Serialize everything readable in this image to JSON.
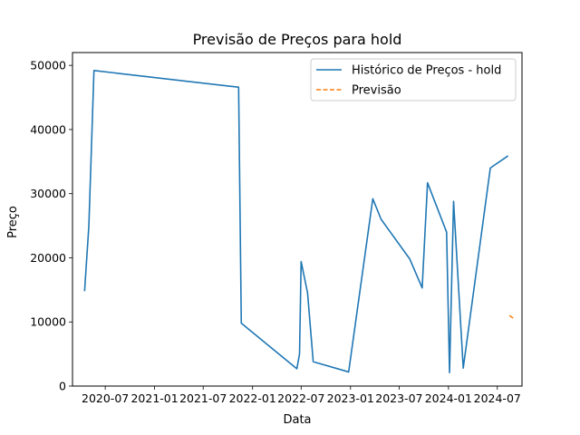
{
  "chart_data": {
    "type": "line",
    "title": "Previsão de Preços para hold",
    "xlabel": "Data",
    "ylabel": "Preço",
    "xlim": [
      "2020-03-01",
      "2024-10-01"
    ],
    "ylim": [
      0,
      52000
    ],
    "x_ticks": [
      "2020-07",
      "2021-01",
      "2021-07",
      "2022-01",
      "2022-07",
      "2023-01",
      "2023-07",
      "2024-01",
      "2024-07"
    ],
    "y_ticks": [
      0,
      10000,
      20000,
      30000,
      40000,
      50000
    ],
    "y_tick_labels": [
      "0",
      "10000",
      "20000",
      "30000",
      "40000",
      "50000"
    ],
    "grid": false,
    "legend_position": "top-right",
    "series": [
      {
        "name": "Histórico de Preços - hold",
        "color": "#1f77b4",
        "style": "solid",
        "x": [
          "2020-04-15",
          "2020-05-01",
          "2020-05-20",
          "2021-11-10",
          "2021-11-20",
          "2022-06-15",
          "2022-06-25",
          "2022-07-01",
          "2022-07-25",
          "2022-08-15",
          "2022-12-25",
          "2023-03-25",
          "2023-04-25",
          "2023-08-10",
          "2023-09-25",
          "2023-10-15",
          "2023-12-25",
          "2024-01-05",
          "2024-01-20",
          "2024-02-25",
          "2024-06-05",
          "2024-08-10"
        ],
        "y": [
          14800,
          25000,
          49200,
          46600,
          9800,
          2700,
          5000,
          19400,
          14500,
          3800,
          2200,
          29200,
          26000,
          19800,
          15300,
          31700,
          24000,
          2100,
          28800,
          2800,
          34000,
          35900
        ]
      },
      {
        "name": "Previsão",
        "color": "#ff7f0e",
        "style": "dashed",
        "x": [
          "2024-08-15",
          "2024-09-01"
        ],
        "y": [
          11000,
          10500
        ]
      }
    ]
  }
}
